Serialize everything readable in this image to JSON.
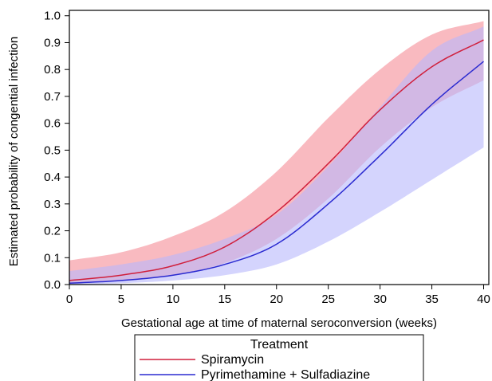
{
  "chart_data": {
    "type": "line",
    "title": "",
    "xlabel": "Gestational age at time of maternal seroconversion (weeks)",
    "ylabel": "Estimated probability of congential infection",
    "xlim": [
      0,
      40.5
    ],
    "ylim": [
      0,
      1.02
    ],
    "xticks": [
      0,
      5,
      10,
      15,
      20,
      25,
      30,
      35,
      40
    ],
    "xtick_labels": [
      "0",
      "5",
      "10",
      "15",
      "20",
      "25",
      "30",
      "35",
      "40"
    ],
    "yticks": [
      0,
      0.1,
      0.2,
      0.3,
      0.4,
      0.5,
      0.6,
      0.7,
      0.8,
      0.9,
      1.0
    ],
    "ytick_labels": [
      "0.0",
      "0.1",
      "0.2",
      "0.3",
      "0.4",
      "0.5",
      "0.6",
      "0.7",
      "0.8",
      "0.9",
      "1.0"
    ],
    "grid": false,
    "legend": {
      "title": "Treatment",
      "placement": "bottom-center"
    },
    "x": [
      0,
      5,
      10,
      15,
      20,
      25,
      30,
      35,
      40
    ],
    "series": [
      {
        "name": "Spiramycin",
        "color": "#d01f3c",
        "band_color": "#f7a3ab",
        "values": [
          0.015,
          0.035,
          0.07,
          0.14,
          0.27,
          0.45,
          0.65,
          0.81,
          0.91
        ],
        "lower": [
          0.005,
          0.015,
          0.035,
          0.08,
          0.17,
          0.32,
          0.51,
          0.66,
          0.76
        ],
        "upper": [
          0.09,
          0.12,
          0.18,
          0.27,
          0.42,
          0.62,
          0.8,
          0.93,
          0.98
        ]
      },
      {
        "name": "Pyrimethamine + Sulfadiazine",
        "color": "#2a2ad0",
        "band_color": "#b7b7fb",
        "values": [
          0.005,
          0.015,
          0.035,
          0.075,
          0.15,
          0.3,
          0.48,
          0.67,
          0.83
        ],
        "lower": [
          0.0,
          0.005,
          0.015,
          0.035,
          0.075,
          0.16,
          0.27,
          0.39,
          0.51
        ],
        "upper": [
          0.05,
          0.075,
          0.11,
          0.17,
          0.26,
          0.44,
          0.66,
          0.87,
          0.96
        ]
      }
    ]
  }
}
